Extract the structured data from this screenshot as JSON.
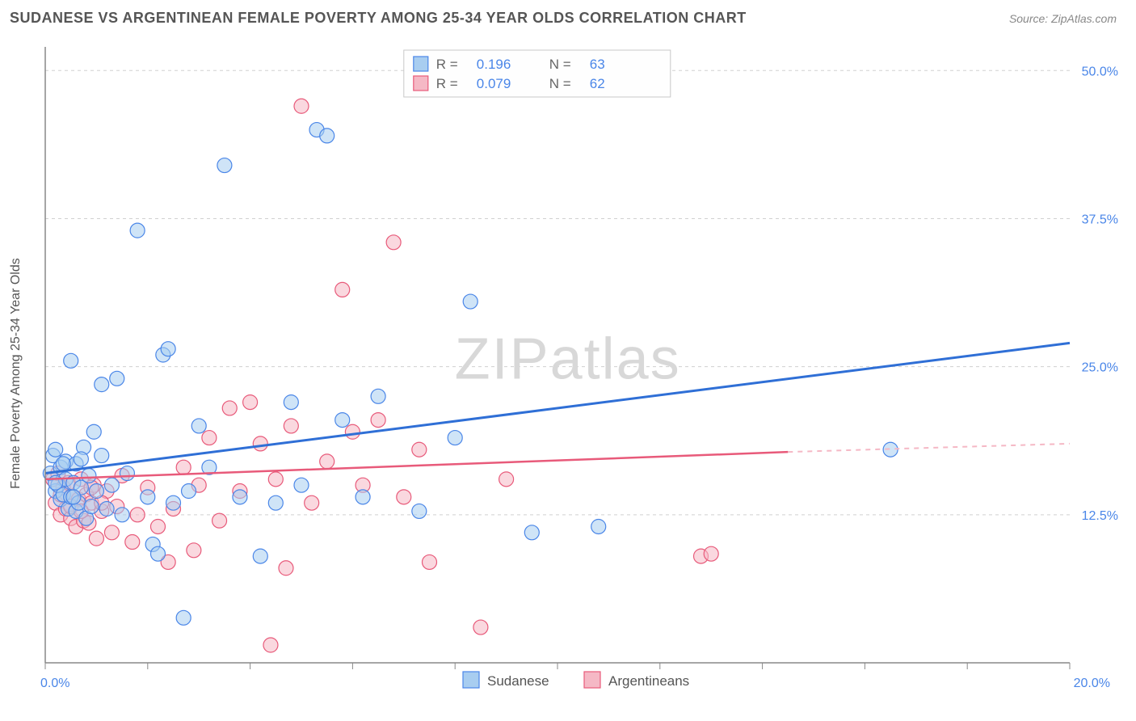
{
  "header": {
    "title": "SUDANESE VS ARGENTINEAN FEMALE POVERTY AMONG 25-34 YEAR OLDS CORRELATION CHART",
    "source": "Source: ZipAtlas.com"
  },
  "ylabel": "Female Poverty Among 25-34 Year Olds",
  "watermark": "ZIPatlas",
  "chart": {
    "type": "scatter",
    "xlim": [
      0,
      20
    ],
    "ylim": [
      0,
      52
    ],
    "x_ticks": [
      0,
      2,
      4,
      6,
      8,
      10,
      12,
      14,
      16,
      18,
      20
    ],
    "x_tick_labels": {
      "0": "0.0%",
      "20": "20.0%"
    },
    "y_grid": [
      12.5,
      25.0,
      37.5,
      50.0
    ],
    "y_grid_labels": [
      "12.5%",
      "25.0%",
      "37.5%",
      "50.0%"
    ],
    "grid_color": "#d0d0d0",
    "axis_color": "#888888",
    "background_color": "#ffffff",
    "marker_radius": 9
  },
  "series_a": {
    "name": "Sudanese",
    "color_fill": "#a8cdf0",
    "color_stroke": "#4a86e8",
    "trend_color": "#2f6fd6",
    "R": "0.196",
    "N": "63",
    "trend": {
      "x1": 0,
      "y1": 16,
      "x2": 20,
      "y2": 27
    },
    "points": [
      [
        0.1,
        16
      ],
      [
        0.15,
        17.5
      ],
      [
        0.2,
        14.5
      ],
      [
        0.2,
        18
      ],
      [
        0.25,
        15
      ],
      [
        0.3,
        13.8
      ],
      [
        0.3,
        16.5
      ],
      [
        0.35,
        14.2
      ],
      [
        0.4,
        15.5
      ],
      [
        0.4,
        17
      ],
      [
        0.45,
        13
      ],
      [
        0.5,
        14
      ],
      [
        0.5,
        25.5
      ],
      [
        0.55,
        15.2
      ],
      [
        0.6,
        12.8
      ],
      [
        0.6,
        16.8
      ],
      [
        0.65,
        13.5
      ],
      [
        0.7,
        14.8
      ],
      [
        0.75,
        18.2
      ],
      [
        0.8,
        12.2
      ],
      [
        0.85,
        15.8
      ],
      [
        0.9,
        13.2
      ],
      [
        0.95,
        19.5
      ],
      [
        1.0,
        14.5
      ],
      [
        1.1,
        17.5
      ],
      [
        1.1,
        23.5
      ],
      [
        1.2,
        13
      ],
      [
        1.3,
        15
      ],
      [
        1.4,
        24
      ],
      [
        1.5,
        12.5
      ],
      [
        1.6,
        16
      ],
      [
        1.8,
        36.5
      ],
      [
        2.0,
        14
      ],
      [
        2.1,
        10
      ],
      [
        2.2,
        9.2
      ],
      [
        2.3,
        26
      ],
      [
        2.4,
        26.5
      ],
      [
        2.5,
        13.5
      ],
      [
        2.7,
        3.8
      ],
      [
        2.8,
        14.5
      ],
      [
        3.0,
        20
      ],
      [
        3.2,
        16.5
      ],
      [
        3.5,
        42
      ],
      [
        3.8,
        14
      ],
      [
        4.2,
        9
      ],
      [
        4.5,
        13.5
      ],
      [
        4.8,
        22
      ],
      [
        5.0,
        15
      ],
      [
        5.3,
        45
      ],
      [
        5.5,
        44.5
      ],
      [
        5.8,
        20.5
      ],
      [
        6.2,
        14
      ],
      [
        6.5,
        22.5
      ],
      [
        7.3,
        12.8
      ],
      [
        8.0,
        19
      ],
      [
        8.3,
        30.5
      ],
      [
        9.5,
        11
      ],
      [
        10.8,
        11.5
      ],
      [
        16.5,
        18
      ],
      [
        0.2,
        15.2
      ],
      [
        0.35,
        16.8
      ],
      [
        0.55,
        14.0
      ],
      [
        0.7,
        17.2
      ]
    ]
  },
  "series_b": {
    "name": "Argentineans",
    "color_fill": "#f5b8c5",
    "color_stroke": "#e85a7a",
    "trend_color": "#e85a7a",
    "R": "0.079",
    "N": "62",
    "trend_solid": {
      "x1": 0,
      "y1": 15.5,
      "x2": 14.5,
      "y2": 17.8
    },
    "trend_dash": {
      "x1": 14.5,
      "y1": 17.8,
      "x2": 20,
      "y2": 18.5
    },
    "points": [
      [
        0.15,
        15.5
      ],
      [
        0.2,
        13.5
      ],
      [
        0.25,
        16
      ],
      [
        0.3,
        12.5
      ],
      [
        0.35,
        14.8
      ],
      [
        0.4,
        13
      ],
      [
        0.45,
        15.2
      ],
      [
        0.5,
        12.2
      ],
      [
        0.55,
        14
      ],
      [
        0.6,
        11.5
      ],
      [
        0.65,
        13.8
      ],
      [
        0.7,
        15.5
      ],
      [
        0.75,
        12
      ],
      [
        0.8,
        14.2
      ],
      [
        0.85,
        11.8
      ],
      [
        0.9,
        13.5
      ],
      [
        0.95,
        15
      ],
      [
        1.0,
        10.5
      ],
      [
        1.1,
        12.8
      ],
      [
        1.2,
        14.5
      ],
      [
        1.3,
        11
      ],
      [
        1.4,
        13.2
      ],
      [
        1.5,
        15.8
      ],
      [
        1.7,
        10.2
      ],
      [
        1.8,
        12.5
      ],
      [
        2.0,
        14.8
      ],
      [
        2.2,
        11.5
      ],
      [
        2.4,
        8.5
      ],
      [
        2.5,
        13
      ],
      [
        2.7,
        16.5
      ],
      [
        2.9,
        9.5
      ],
      [
        3.0,
        15
      ],
      [
        3.2,
        19
      ],
      [
        3.4,
        12
      ],
      [
        3.6,
        21.5
      ],
      [
        3.8,
        14.5
      ],
      [
        4.0,
        22
      ],
      [
        4.2,
        18.5
      ],
      [
        4.4,
        1.5
      ],
      [
        4.5,
        15.5
      ],
      [
        4.7,
        8
      ],
      [
        4.8,
        20
      ],
      [
        5.0,
        47
      ],
      [
        5.2,
        13.5
      ],
      [
        5.5,
        17
      ],
      [
        5.8,
        31.5
      ],
      [
        6.0,
        19.5
      ],
      [
        6.2,
        15
      ],
      [
        6.5,
        20.5
      ],
      [
        6.8,
        35.5
      ],
      [
        7.0,
        14
      ],
      [
        7.3,
        18
      ],
      [
        7.5,
        8.5
      ],
      [
        8.5,
        3
      ],
      [
        9.0,
        15.5
      ],
      [
        12.8,
        9
      ],
      [
        13.0,
        9.2
      ],
      [
        0.3,
        14.2
      ],
      [
        0.5,
        13.2
      ],
      [
        0.7,
        12.8
      ],
      [
        0.9,
        14.8
      ],
      [
        1.1,
        13.5
      ]
    ]
  },
  "top_legend": {
    "r_label": "R =",
    "n_label": "N ="
  }
}
